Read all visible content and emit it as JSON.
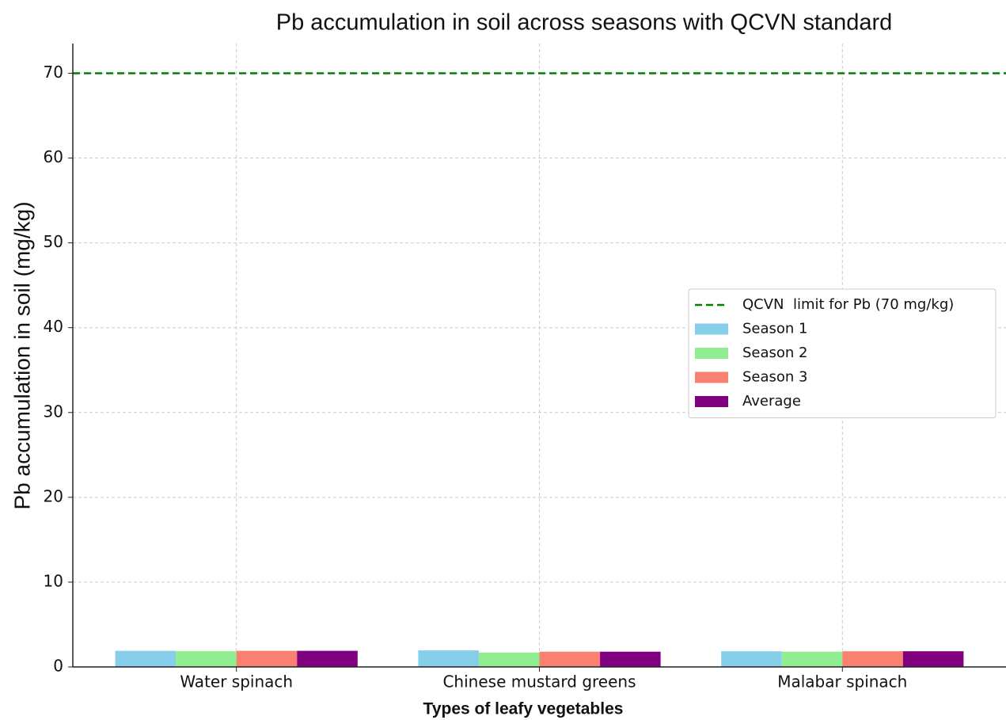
{
  "chart_data": {
    "type": "bar",
    "title": "Pb accumulation in soil across seasons with QCVN standard",
    "x_label": "Types of leafy vegetables",
    "y_label": "Pb accumulation in soil (mg/kg)",
    "categories": [
      "Water spinach",
      "Chinese mustard greens",
      "Malabar spinach"
    ],
    "series": [
      {
        "name": "Season 1",
        "color": "#87ceeb",
        "values": [
          1.9,
          1.95,
          1.85
        ]
      },
      {
        "name": "Season 2",
        "color": "#90ee90",
        "values": [
          1.85,
          1.7,
          1.8
        ]
      },
      {
        "name": "Season 3",
        "color": "#fa8072",
        "values": [
          1.9,
          1.8,
          1.85
        ]
      },
      {
        "name": "Average",
        "color": "#800080",
        "values": [
          1.9,
          1.8,
          1.85
        ]
      }
    ],
    "reference_lines": [
      {
        "name": "QCVN  limit for Pb (70 mg/kg)",
        "value": 70,
        "color": "#008000"
      }
    ],
    "ylim": [
      0,
      73.5
    ],
    "yticks": [
      0,
      10,
      20,
      30,
      40,
      50,
      60,
      70
    ],
    "grid": true,
    "legend": "right"
  }
}
